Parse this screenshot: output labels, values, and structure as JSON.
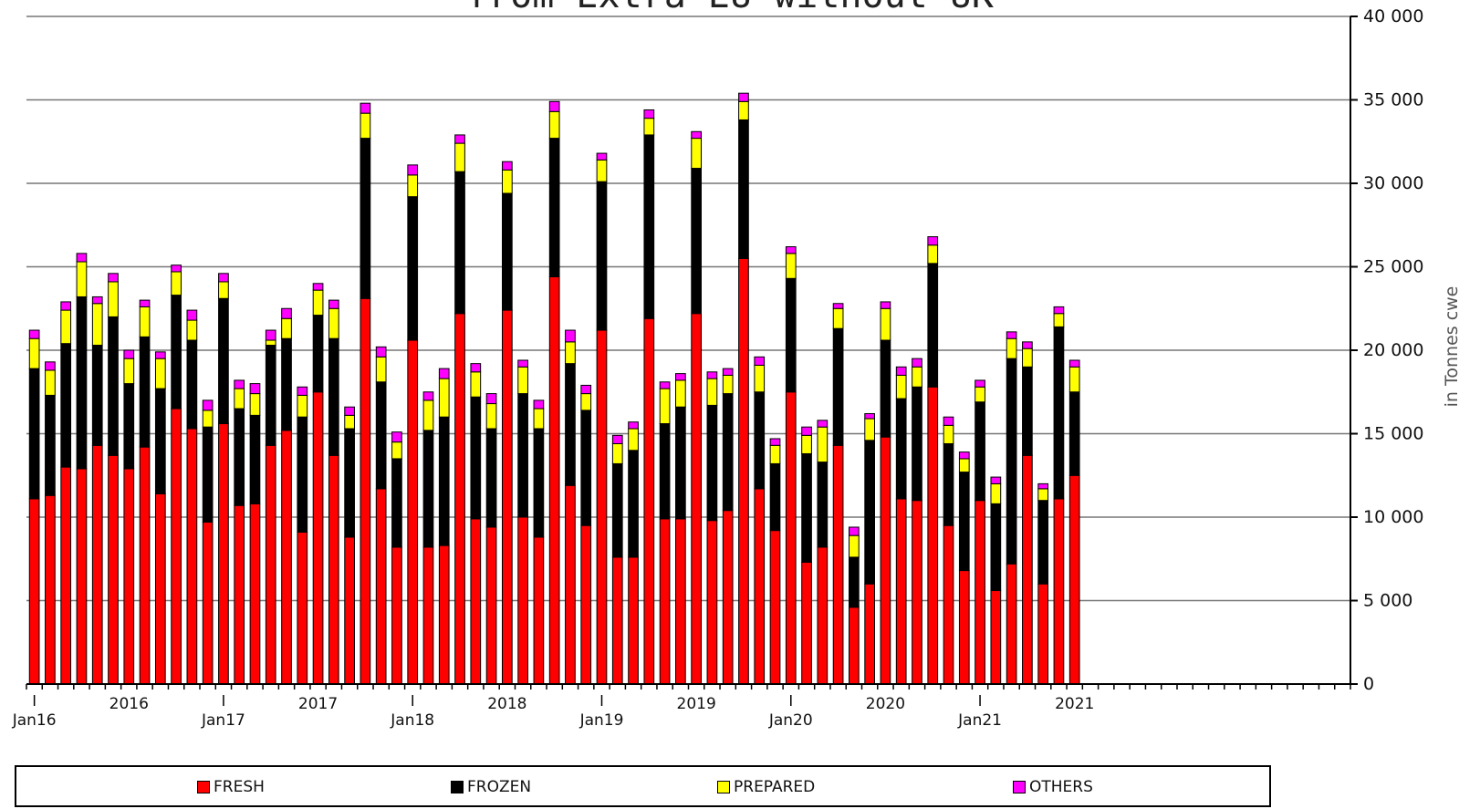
{
  "chart_data": {
    "type": "bar",
    "stacked": true,
    "title": "from Extra EU without UK",
    "ylabel": "in Tonnes cwe",
    "ylim": [
      0,
      40000
    ],
    "yticks": [
      0,
      5000,
      10000,
      15000,
      20000,
      25000,
      30000,
      35000,
      40000
    ],
    "ytick_labels": [
      "0",
      "5 000",
      "10 000",
      "15 000",
      "20 000",
      "25 000",
      "30 000",
      "35 000",
      "40 000"
    ],
    "x_start": "2016-01",
    "x_end": "2022-12",
    "x_month_labels": [
      "Jan16",
      "Jan17",
      "Jan18",
      "Jan19",
      "Jan20",
      "Jan21"
    ],
    "x_year_labels": [
      "2016",
      "2017",
      "2018",
      "2019",
      "2020",
      "2021"
    ],
    "grid": true,
    "legend_position": "bottom",
    "categories": [
      "2016-01",
      "2016-02",
      "2016-03",
      "2016-04",
      "2016-05",
      "2016-06",
      "2016-07",
      "2016-08",
      "2016-09",
      "2016-10",
      "2016-11",
      "2016-12",
      "2017-01",
      "2017-02",
      "2017-03",
      "2017-04",
      "2017-05",
      "2017-06",
      "2017-07",
      "2017-08",
      "2017-09",
      "2017-10",
      "2017-11",
      "2017-12",
      "2018-01",
      "2018-02",
      "2018-03",
      "2018-04",
      "2018-05",
      "2018-06",
      "2018-07",
      "2018-08",
      "2018-09",
      "2018-10",
      "2018-11",
      "2018-12",
      "2019-01",
      "2019-02",
      "2019-03",
      "2019-04",
      "2019-05",
      "2019-06",
      "2019-07",
      "2019-08",
      "2019-09",
      "2019-10",
      "2019-11",
      "2019-12",
      "2020-01",
      "2020-02",
      "2020-03",
      "2020-04",
      "2020-05",
      "2020-06",
      "2020-07",
      "2020-08",
      "2020-09",
      "2020-10",
      "2020-11",
      "2020-12",
      "2021-01",
      "2021-02",
      "2021-03",
      "2021-04",
      "2021-05",
      "2021-06",
      "2021-07"
    ],
    "series": [
      {
        "name": "FRESH",
        "color": "#ff0000",
        "values": [
          11100,
          11300,
          13000,
          12900,
          14300,
          13700,
          12900,
          14200,
          11400,
          16500,
          15300,
          9700,
          15600,
          10700,
          10800,
          14300,
          15200,
          9100,
          17500,
          13700,
          8800,
          23100,
          11700,
          8200,
          20600,
          8200,
          8300,
          22200,
          9900,
          9400,
          22400,
          10000,
          8800,
          24400,
          11900,
          9500,
          21200,
          7600,
          7600,
          21900,
          9900,
          9900,
          22200,
          9800,
          10400,
          25500,
          11700,
          9200,
          17500,
          7300,
          8200,
          14300,
          4600,
          6000,
          14800,
          11100,
          11000,
          17800,
          9500,
          6800,
          11000,
          5600,
          7200,
          13700,
          6000,
          11100,
          12500
        ]
      },
      {
        "name": "FROZEN",
        "color": "#000000",
        "values": [
          7800,
          6000,
          7400,
          10300,
          6000,
          8300,
          5100,
          6600,
          6300,
          6800,
          5300,
          5700,
          7500,
          5800,
          5300,
          6000,
          5500,
          6900,
          4600,
          7000,
          6500,
          9600,
          6400,
          5300,
          8600,
          7000,
          7700,
          8500,
          7300,
          5900,
          7000,
          7400,
          6500,
          8300,
          7300,
          6900,
          8900,
          5600,
          6400,
          11000,
          5700,
          6700,
          8700,
          6900,
          7000,
          8300,
          5800,
          4000,
          6800,
          6500,
          5100,
          7000,
          3000,
          8600,
          5800,
          6000,
          6800,
          7400,
          4900,
          5900,
          5900,
          5200,
          12300,
          5300,
          5000,
          10300,
          5000
        ]
      },
      {
        "name": "PREPARED",
        "color": "#ffff00",
        "values": [
          1800,
          1500,
          2000,
          2100,
          2500,
          2100,
          1500,
          1800,
          1800,
          1400,
          1200,
          1000,
          1000,
          1200,
          1300,
          300,
          1200,
          1300,
          1500,
          1800,
          800,
          1500,
          1500,
          1000,
          1300,
          1800,
          2300,
          1700,
          1500,
          1500,
          1400,
          1600,
          1200,
          1600,
          1300,
          1000,
          1300,
          1200,
          1300,
          1000,
          2100,
          1600,
          1800,
          1600,
          1100,
          1100,
          1600,
          1100,
          1500,
          1100,
          2100,
          1200,
          1300,
          1300,
          1900,
          1400,
          1200,
          1100,
          1100,
          800,
          900,
          1200,
          1200,
          1100,
          700,
          800,
          1500
        ]
      },
      {
        "name": "OTHERS",
        "color": "#ff00ff",
        "values": [
          500,
          500,
          500,
          500,
          400,
          500,
          500,
          400,
          400,
          400,
          600,
          600,
          500,
          500,
          600,
          600,
          600,
          500,
          400,
          500,
          500,
          600,
          600,
          600,
          600,
          500,
          600,
          500,
          500,
          600,
          500,
          400,
          500,
          600,
          700,
          500,
          400,
          500,
          400,
          500,
          400,
          400,
          400,
          400,
          400,
          500,
          500,
          400,
          400,
          500,
          400,
          300,
          500,
          300,
          400,
          500,
          500,
          500,
          500,
          400,
          400,
          400,
          400,
          400,
          300,
          400,
          400
        ]
      }
    ]
  }
}
